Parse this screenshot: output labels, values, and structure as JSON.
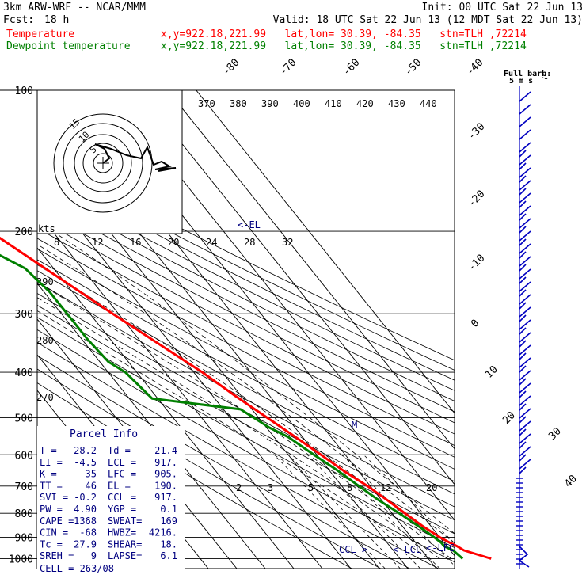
{
  "header": {
    "model": "3km ARW-WRF -- NCAR/MMM",
    "init": "Init: 00 UTC Sat 22 Jun 13",
    "fcst_label": "Fcst:",
    "fcst_value": "18 h",
    "valid": "Valid: 18 UTC Sat 22 Jun 13 (12 MDT Sat 22 Jun 13)",
    "temp_label": "Temperature",
    "dew_label": "Dewpoint temperature",
    "location": "x,y=922.18,221.99   lat,lon= 30.39, -84.35   stn=TLH ,72214"
  },
  "chart_data": {
    "type": "line",
    "pressure_labels": [
      "100",
      "200",
      "300",
      "400",
      "500",
      "600",
      "700",
      "800",
      "900",
      "1000"
    ],
    "pressure_levels": [
      100,
      200,
      300,
      400,
      500,
      600,
      700,
      800,
      900,
      1000
    ],
    "skewed_temp_labels": [
      "-80",
      "-70",
      "-60",
      "-50",
      "-40",
      "-30",
      "-20",
      "-10",
      "0",
      "10",
      "20",
      "30",
      "40"
    ],
    "theta_labels": [
      "370",
      "380",
      "390",
      "400",
      "410",
      "420",
      "430",
      "440"
    ],
    "theta_left_labels": [
      "290",
      "280",
      "270"
    ],
    "mixing_ratio_labels": [
      "2",
      "3",
      "5",
      "8",
      "12",
      "20"
    ],
    "hodograph": {
      "units": "kts",
      "speed_labels": [
        "8",
        "12",
        "16",
        "20",
        "24",
        "28",
        "32"
      ],
      "ring_labels": [
        "5",
        "10",
        "15"
      ]
    },
    "markers": {
      "el": "<-EL",
      "ccl": "CCL->",
      "lcl": "<-LCL",
      "lfc": "<-LFC",
      "m": "M"
    },
    "barb_legend": {
      "title": "Full barb:",
      "value": "5 m s",
      "sup": "-1"
    },
    "series": [
      {
        "name": "Temperature",
        "color": "#ff0000",
        "points": [
          [
            1000,
            32
          ],
          [
            960,
            24.8
          ],
          [
            940,
            23.5
          ],
          [
            925,
            22
          ],
          [
            900,
            20
          ],
          [
            850,
            17
          ],
          [
            800,
            14.5
          ],
          [
            750,
            12
          ],
          [
            700,
            9
          ],
          [
            650,
            5
          ],
          [
            600,
            1.5
          ],
          [
            550,
            -2.5
          ],
          [
            500,
            -7
          ],
          [
            450,
            -12
          ],
          [
            400,
            -17
          ],
          [
            350,
            -24
          ],
          [
            300,
            -32
          ],
          [
            250,
            -41
          ],
          [
            200,
            -52
          ],
          [
            185,
            -57
          ],
          [
            170,
            -59
          ],
          [
            150,
            -61
          ],
          [
            120,
            -63
          ],
          [
            100,
            -62
          ]
        ]
      },
      {
        "name": "Dewpoint temperature",
        "color": "#008000",
        "points": [
          [
            1000,
            22
          ],
          [
            960,
            21
          ],
          [
            940,
            19
          ],
          [
            925,
            19
          ],
          [
            900,
            18
          ],
          [
            850,
            15.5
          ],
          [
            800,
            12.5
          ],
          [
            750,
            9
          ],
          [
            700,
            6
          ],
          [
            650,
            3
          ],
          [
            600,
            -1
          ],
          [
            550,
            -5
          ],
          [
            525,
            -9
          ],
          [
            480,
            -14
          ],
          [
            455,
            -42
          ],
          [
            400,
            -44
          ],
          [
            380,
            -47
          ],
          [
            340,
            -48
          ],
          [
            300,
            -48
          ],
          [
            270,
            -48
          ],
          [
            240,
            -50
          ],
          [
            220,
            -57
          ],
          [
            200,
            -64
          ],
          [
            180,
            -69
          ],
          [
            165,
            -72
          ],
          [
            150,
            -72
          ],
          [
            140,
            -74
          ],
          [
            125,
            -75
          ],
          [
            110,
            -77
          ],
          [
            100,
            -79
          ]
        ]
      }
    ],
    "parcel_info": {
      "title": "Parcel Info",
      "rows": [
        [
          "T  =",
          "28.2",
          "Td =",
          "21.4"
        ],
        [
          "LI =",
          "-4.5",
          "LCL =",
          "917."
        ],
        [
          "K  =",
          "35",
          "LFC =",
          "905."
        ],
        [
          "TT =",
          "46",
          "EL =",
          "190."
        ],
        [
          "SVI =",
          "-0.2",
          "CCL =",
          "917."
        ],
        [
          "PW =",
          "4.90",
          "YGP =",
          "0.1"
        ],
        [
          "CAPE =",
          "1368",
          "SWEAT=",
          "169"
        ],
        [
          "CIN =",
          "-68",
          "HWBZ=",
          "4216."
        ],
        [
          "Tc =",
          "27.9",
          "SHEAR=",
          "18."
        ],
        [
          "SREH =",
          "9",
          "LAPSE=",
          "6.1"
        ]
      ],
      "cell": "CELL = 263/08"
    },
    "colors": {
      "temp": "#ff0000",
      "dew": "#008000",
      "info": "#000080",
      "barb": "#0000c0"
    }
  }
}
